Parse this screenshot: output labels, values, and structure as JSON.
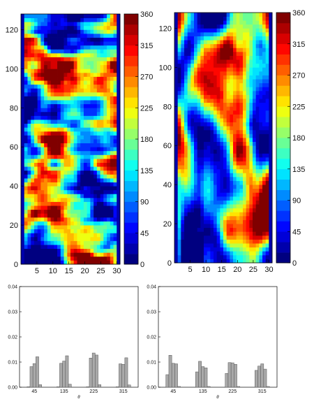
{
  "chart_data": [
    {
      "type": "heatmap",
      "x_ticks": [
        5,
        10,
        15,
        20,
        25,
        30
      ],
      "y_ticks": [
        0,
        20,
        40,
        60,
        80,
        100,
        120
      ],
      "xlim": [
        0,
        31
      ],
      "ylim": [
        0,
        128
      ],
      "grid": false,
      "colorbar": {
        "ticks": [
          0,
          45,
          90,
          135,
          180,
          225,
          270,
          315,
          360
        ],
        "range": [
          0,
          360
        ],
        "colormap": "jet",
        "steps": 24
      },
      "description_pattern": "noisy, fine horizontally streaked texture",
      "seed": 7,
      "stretch": 1
    },
    {
      "type": "heatmap",
      "x_ticks": [
        5,
        10,
        15,
        20,
        25,
        30
      ],
      "y_ticks": [
        0,
        20,
        40,
        60,
        80,
        100,
        120
      ],
      "xlim": [
        0,
        31
      ],
      "ylim": [
        0,
        128
      ],
      "grid": false,
      "colorbar": {
        "ticks": [
          0,
          45,
          90,
          135,
          180,
          225,
          270,
          315,
          360
        ],
        "range": [
          0,
          360
        ],
        "colormap": "jet",
        "steps": 24
      },
      "description_pattern": "vertically elongated streaks",
      "seed": 23,
      "stretch": 4
    },
    {
      "type": "bar",
      "categories": [
        "45",
        "135",
        "225",
        "315"
      ],
      "xlabel": "θ",
      "ylim": [
        0,
        0.04
      ],
      "y_ticks": [
        "0.00",
        "0.01",
        "0.02",
        "0.03",
        "0.04"
      ],
      "bar_color": "#a9a9a9",
      "groups": [
        [
          0.0002,
          0.0082,
          0.0094,
          0.0121,
          0.001
        ],
        [
          0.0002,
          0.0095,
          0.0104,
          0.0125,
          0.0012
        ],
        [
          0.0002,
          0.0116,
          0.0136,
          0.0128,
          0.001
        ],
        [
          0.0002,
          0.0093,
          0.0091,
          0.0117,
          0.0009
        ]
      ]
    },
    {
      "type": "bar",
      "categories": [
        "45",
        "135",
        "225",
        "315"
      ],
      "xlabel": "θ",
      "ylim": [
        0,
        0.04
      ],
      "y_ticks": [
        "0.00",
        "0.01",
        "0.02",
        "0.03",
        "0.04"
      ],
      "bar_color": "#a9a9a9",
      "groups": [
        [
          0.005,
          0.0127,
          0.0095,
          0.0093,
          0.0003
        ],
        [
          0.0061,
          0.0103,
          0.0082,
          0.0077,
          0.0003
        ],
        [
          0.0055,
          0.0098,
          0.0097,
          0.0091,
          0.0003
        ],
        [
          0.0067,
          0.0084,
          0.0093,
          0.0072,
          0.0003
        ]
      ]
    }
  ]
}
